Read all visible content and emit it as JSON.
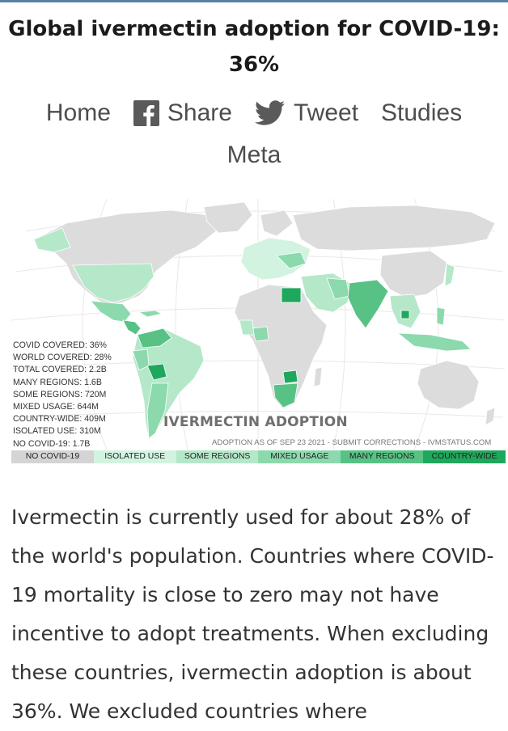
{
  "page": {
    "title": "Global ivermectin adoption for COVID-19: 36%"
  },
  "nav": {
    "items": [
      {
        "label": "Home",
        "icon": ""
      },
      {
        "label": "Share",
        "icon": "facebook-icon"
      },
      {
        "label": "Tweet",
        "icon": "twitter-bird-icon"
      },
      {
        "label": "Studies",
        "icon": ""
      },
      {
        "label": "Meta",
        "icon": ""
      }
    ]
  },
  "map": {
    "stats": [
      "COVID COVERED: 36%",
      "WORLD COVERED: 28%",
      "TOTAL COVERED: 2.2B",
      "MANY REGIONS: 1.6B",
      "SOME REGIONS: 720M",
      "MIXED USAGE: 644M",
      "COUNTRY-WIDE: 409M",
      "ISOLATED USE: 310M",
      "NO COVID-19: 1.7B"
    ],
    "heading": "IVERMECTIN ADOPTION",
    "subheading": "ADOPTION AS OF SEP 23 2021 - SUBMIT CORRECTIONS - IVMSTATUS.COM",
    "legend": [
      {
        "label": "NO COVID-19",
        "color": "#d4d4d4"
      },
      {
        "label": "ISOLATED USE",
        "color": "#d3f3e1"
      },
      {
        "label": "SOME REGIONS",
        "color": "#b4e8c9"
      },
      {
        "label": "MIXED USAGE",
        "color": "#8cd9ad"
      },
      {
        "label": "MANY REGIONS",
        "color": "#58c285"
      },
      {
        "label": "COUNTRY-WIDE",
        "color": "#1fa85d"
      }
    ],
    "land_color": "#dcdcdc",
    "grid_color": "#e6e6e6"
  },
  "article": {
    "text": "Ivermectin is currently used for about 28% of the world's population. Countries where COVID-19 mortality is close to zero may not have incentive to adopt treatments. When excluding these countries, ivermectin adoption is about 36%. We excluded countries where"
  }
}
